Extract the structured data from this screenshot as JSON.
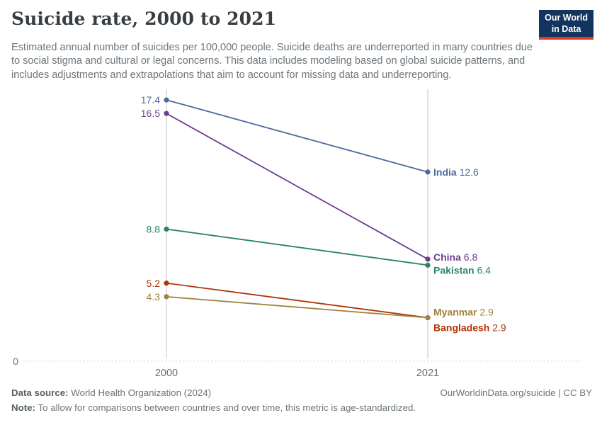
{
  "header": {
    "title": "Suicide rate, 2000 to 2021",
    "subtitle": "Estimated annual number of suicides per 100,000 people. Suicide deaths are underreported in many countries due to social stigma and cultural or legal concerns. This data includes modeling based on global suicide patterns, and includes adjustments and extrapolations that aim to account for missing data and underreporting.",
    "logo": {
      "line1": "Our World",
      "line2": "in Data",
      "bg_color": "#12355F",
      "accent_color": "#E23B22"
    }
  },
  "chart_data": {
    "type": "line",
    "subtype": "slope",
    "x": [
      2000,
      2021
    ],
    "x_tick_labels": [
      "2000",
      "2021"
    ],
    "y_zero_label": "0",
    "ylim": [
      0,
      18.2
    ],
    "grid": "two vertical year gridlines, dashed zero baseline",
    "legend_position": "labels-inline: left values at 2000, country+value at 2021",
    "series": [
      {
        "name": "India",
        "values": [
          17.4,
          12.6
        ],
        "color": "#4C6A9C",
        "start_label": "17.4",
        "end_label": "India 12.6"
      },
      {
        "name": "China",
        "values": [
          16.5,
          6.8
        ],
        "color": "#6D3E91",
        "start_label": "16.5",
        "end_label": "China 6.8"
      },
      {
        "name": "Pakistan",
        "values": [
          8.8,
          6.4
        ],
        "color": "#2C8465",
        "start_label": "8.8",
        "end_label": "Pakistan 6.4"
      },
      {
        "name": "Bangladesh",
        "values": [
          5.2,
          2.9
        ],
        "color": "#B13507",
        "start_label": "5.2",
        "end_label": "Bangladesh 2.9"
      },
      {
        "name": "Myanmar",
        "values": [
          4.3,
          2.9
        ],
        "color": "#A1823F",
        "start_label": "4.3",
        "end_label": "Myanmar 2.9"
      }
    ],
    "colors": {
      "gridline": "#c3c3c3",
      "zero_baseline": "#d9d9d9",
      "tick_text": "#6e6e6e"
    }
  },
  "footer": {
    "data_source_label": "Data source:",
    "data_source": "World Health Organization (2024)",
    "note_label": "Note:",
    "note": "To allow for comparisons between countries and over time, this metric is age-standardized.",
    "link": "OurWorldinData.org/suicide | CC BY"
  }
}
